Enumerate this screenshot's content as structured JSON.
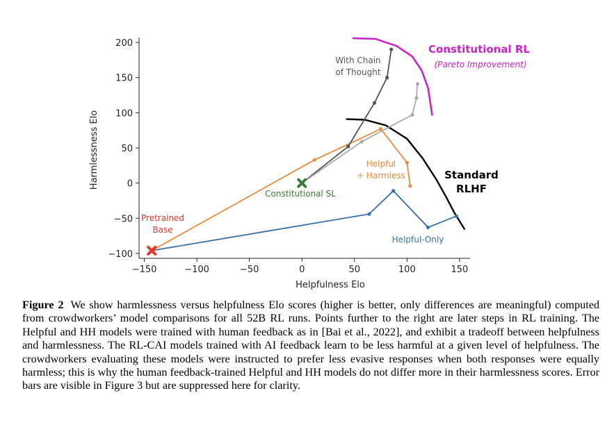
{
  "chart_data": {
    "type": "line",
    "xlabel": "Helpfulness Elo",
    "ylabel": "Harmlessness Elo",
    "xlim": [
      -155,
      160
    ],
    "ylim": [
      -107,
      207
    ],
    "xticks": [
      -150,
      -100,
      -50,
      0,
      50,
      100,
      150
    ],
    "yticks": [
      -100,
      -50,
      0,
      50,
      100,
      150,
      200
    ],
    "series": [
      {
        "name": "Helpful-Only",
        "color": "#3a6ea5",
        "x": [
          -143,
          64,
          87,
          120,
          147
        ],
        "y": [
          -96,
          -44,
          -11,
          -63,
          -47
        ]
      },
      {
        "name": "Helpful + Harmless",
        "color": "#ee8a3c",
        "x": [
          -143,
          12,
          75,
          100,
          103
        ],
        "y": [
          -96,
          33,
          77,
          29,
          -4
        ]
      },
      {
        "name": "With Chain of Thought",
        "color": "#555555",
        "x": [
          0,
          44,
          69,
          81,
          85
        ],
        "y": [
          0,
          52,
          114,
          150,
          190
        ]
      },
      {
        "name": "Constitutional RL",
        "color": "#aaaaaa",
        "x": [
          0,
          57,
          105,
          109,
          110
        ],
        "y": [
          0,
          59,
          97,
          121,
          141
        ]
      }
    ],
    "points": [
      {
        "label": "Pretrained Base",
        "x": -143,
        "y": -96,
        "color": "#e03b2b"
      },
      {
        "label": "Constitutional SL",
        "x": 0,
        "y": 0,
        "color": "#3c7a3a"
      }
    ],
    "annotations": {
      "pretrained": [
        "Pretrained",
        "Base"
      ],
      "constitutional_sl": "Constitutional SL",
      "helpful_harmless": [
        "Helpful",
        "+ Harmless"
      ],
      "helpful_only": "Helpful-Only",
      "chain_of_thought": [
        "With Chain",
        "of Thought"
      ],
      "constitutional_rl": "Constitutional RL",
      "pareto": "(Pareto Improvement)",
      "standard_rlhf": [
        "Standard",
        "RLHF"
      ]
    },
    "frontier_colors": {
      "constitutional_rl": "#cc22cc",
      "standard_rlhf": "#000000"
    }
  },
  "caption": {
    "label": "Figure 2",
    "text": "We show harmlessness versus helpfulness Elo scores (higher is better, only differences are meaningful) computed from crowdworkers’ model comparisons for all 52B RL runs. Points further to the right are later steps in RL training. The Helpful and HH models were trained with human feedback as in [Bai et al., 2022], and exhibit a tradeoff between helpfulness and harmlessness. The RL-CAI models trained with AI feedback learn to be less harmful at a given level of helpfulness. The crowdworkers evaluating these models were instructed to prefer less evasive responses when both responses were equally harmless; this is why the human feedback-trained Helpful and HH models do not differ more in their harmlessness scores. Error bars are visible in Figure 3 but are suppressed here for clarity."
  }
}
